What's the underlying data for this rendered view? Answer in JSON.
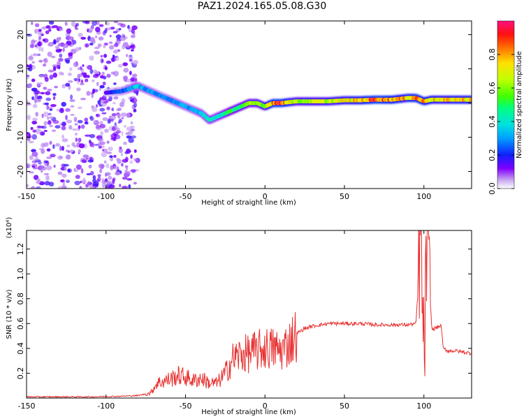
{
  "title": "PAZ1.2024.165.05.08.G30",
  "chart_data": [
    {
      "type": "heatmap",
      "xlabel": "Height of straight line (km)",
      "ylabel": "Frequency (Hz)",
      "xlim": [
        -150,
        130
      ],
      "ylim": [
        -25,
        24
      ],
      "xticks": [
        -150,
        -100,
        -50,
        0,
        50,
        100
      ],
      "yticks": [
        -20,
        -10,
        0,
        10,
        20
      ],
      "colorbar": {
        "label": "Normalized spectral amplitude",
        "ticks": [
          "0.0",
          "0.2",
          "0.4",
          "0.6",
          "0.8"
        ],
        "tick_values": [
          0.0,
          0.2,
          0.4,
          0.6,
          0.8
        ],
        "range": [
          0,
          1
        ]
      },
      "ridge": {
        "x": [
          -100,
          -90,
          -80,
          -75,
          -70,
          -65,
          -60,
          -55,
          -50,
          -45,
          -40,
          -35,
          -30,
          -25,
          -20,
          -15,
          -10,
          -5,
          0,
          5,
          10,
          20,
          30,
          40,
          50,
          60,
          70,
          80,
          90,
          95,
          100,
          105,
          110,
          120,
          130
        ],
        "y": [
          3,
          3.5,
          5,
          4,
          3,
          2,
          1,
          0,
          -1,
          -2,
          -3,
          -5,
          -4,
          -3,
          -2,
          -1,
          0,
          0,
          -1,
          0,
          0,
          0.5,
          0.5,
          0.5,
          0.8,
          0.8,
          1,
          1,
          1.5,
          1.5,
          0.5,
          1,
          1,
          1,
          1
        ],
        "amplitude": [
          0.15,
          0.25,
          0.35,
          0.3,
          0.3,
          0.25,
          0.3,
          0.3,
          0.3,
          0.3,
          0.35,
          0.4,
          0.4,
          0.45,
          0.5,
          0.5,
          0.55,
          0.6,
          0.6,
          0.85,
          0.9,
          0.6,
          0.65,
          0.65,
          0.7,
          0.75,
          0.9,
          0.8,
          0.75,
          0.85,
          0.8,
          0.75,
          0.7,
          0.75,
          0.75
        ]
      }
    },
    {
      "type": "line",
      "xlabel": "Height of straight line (km)",
      "ylabel": "SNR (10 * v/v)",
      "scale_label": "(x10⁴)",
      "xlim": [
        -150,
        130
      ],
      "ylim": [
        0,
        1.35
      ],
      "xticks": [
        -150,
        -100,
        -50,
        0,
        50,
        100
      ],
      "yticks": [
        0.2,
        0.4,
        0.6,
        0.8,
        1.0,
        1.2
      ],
      "color": "#e83030",
      "series": [
        {
          "x": [
            -150,
            -130,
            -110,
            -90,
            -80,
            -72,
            -68,
            -60,
            -55,
            -50,
            -45,
            -40,
            -35,
            -30,
            -25,
            -20,
            -15,
            -10,
            -5,
            0,
            5,
            10,
            15,
            20,
            25,
            30,
            35,
            40,
            45,
            50,
            60,
            70,
            80,
            90,
            95,
            98,
            100,
            102,
            105,
            110,
            111,
            112,
            115,
            120,
            130
          ],
          "y": [
            0.01,
            0.01,
            0.01,
            0.015,
            0.02,
            0.04,
            0.12,
            0.15,
            0.18,
            0.17,
            0.14,
            0.16,
            0.12,
            0.12,
            0.2,
            0.32,
            0.35,
            0.36,
            0.38,
            0.4,
            0.4,
            0.38,
            0.44,
            0.52,
            0.56,
            0.58,
            0.59,
            0.6,
            0.6,
            0.6,
            0.6,
            0.59,
            0.59,
            0.59,
            0.6,
            1.3,
            0.3,
            1.25,
            0.55,
            0.58,
            0.58,
            0.4,
            0.38,
            0.38,
            0.36
          ]
        }
      ]
    }
  ]
}
